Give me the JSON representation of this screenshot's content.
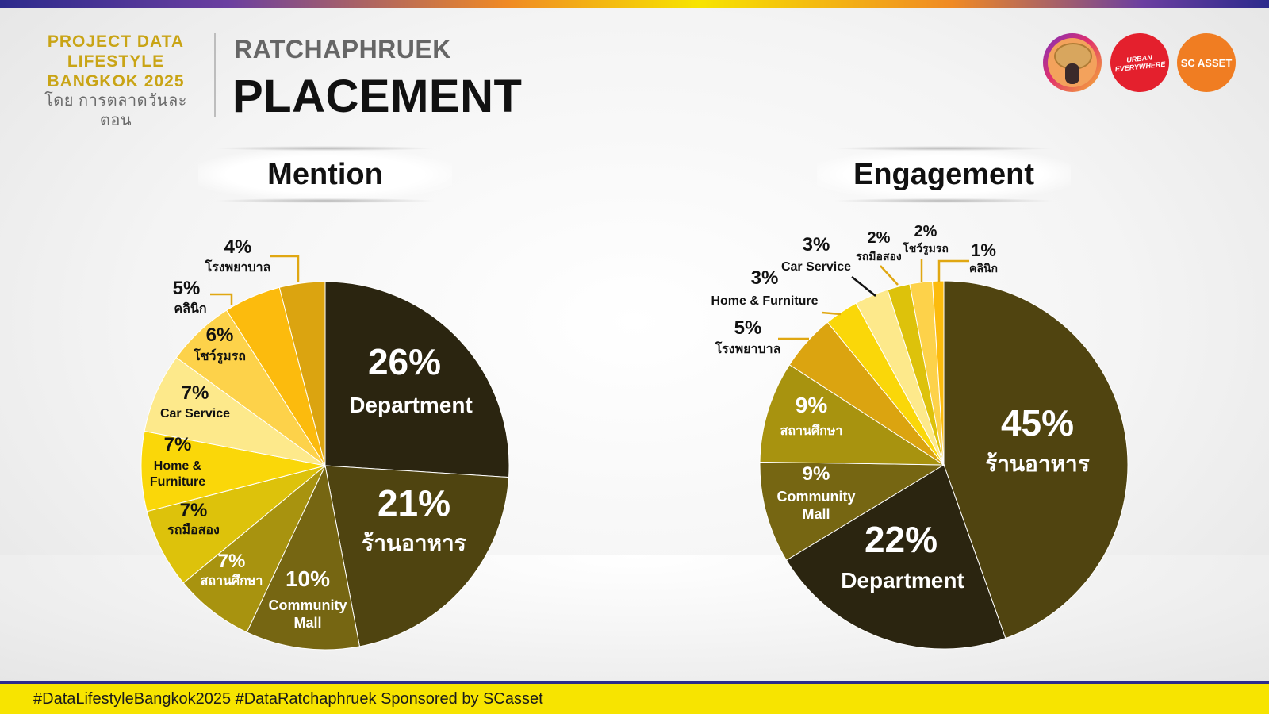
{
  "header": {
    "brand_line1": "PROJECT DATA",
    "brand_line2": "LIFESTYLE",
    "brand_line3": "BANGKOK 2025",
    "brand_by": "โดย การตลาดวันละตอน",
    "place": "RATCHAPHRUEK",
    "title": "PLACEMENT"
  },
  "logos": {
    "urban_line1": "URBAN",
    "urban_line2": "EVERYWHERE",
    "sc_asset": "SC ASSET"
  },
  "footer": {
    "text": "#DataLifestyleBangkok2025 #DataRatchaphruek Sponsored by SCasset"
  },
  "colors": {
    "brand_gold": "#c9a415",
    "footer_yellow": "#f7e400",
    "stripe_navy": "#2c2a8c"
  },
  "chart_data": [
    {
      "type": "pie",
      "title": "Mention",
      "slices": [
        {
          "label": "Department",
          "value": 26,
          "pct": "26%",
          "color": "#2b2510"
        },
        {
          "label": "ร้านอาหาร",
          "value": 21,
          "pct": "21%",
          "color": "#4f4410"
        },
        {
          "label": "Community Mall",
          "value": 10,
          "pct": "10%",
          "color": "#766612"
        },
        {
          "label": "สถานศึกษา",
          "value": 7,
          "pct": "7%",
          "color": "#a8930f"
        },
        {
          "label": "รถมือสอง",
          "value": 7,
          "pct": "7%",
          "color": "#ddc20b"
        },
        {
          "label": "Home & Furniture",
          "value": 7,
          "pct": "7%",
          "color": "#fad709"
        },
        {
          "label": "Car Service",
          "value": 7,
          "pct": "7%",
          "color": "#fde98b"
        },
        {
          "label": "โชว์รูมรถ",
          "value": 6,
          "pct": "6%",
          "color": "#fdd24a"
        },
        {
          "label": "คลินิก",
          "value": 5,
          "pct": "5%",
          "color": "#fcbb0d"
        },
        {
          "label": "โรงพยาบาล",
          "value": 4,
          "pct": "4%",
          "color": "#dba410"
        }
      ]
    },
    {
      "type": "pie",
      "title": "Engagement",
      "slices": [
        {
          "label": "ร้านอาหาร",
          "value": 45,
          "pct": "45%",
          "color": "#504410"
        },
        {
          "label": "Department",
          "value": 22,
          "pct": "22%",
          "color": "#2b2510"
        },
        {
          "label": "Community Mall",
          "value": 9,
          "pct": "9%",
          "color": "#766612"
        },
        {
          "label": "สถานศึกษา",
          "value": 9,
          "pct": "9%",
          "color": "#a8930f"
        },
        {
          "label": "โรงพยาบาล",
          "value": 5,
          "pct": "5%",
          "color": "#dba410"
        },
        {
          "label": "Home & Furniture",
          "value": 3,
          "pct": "3%",
          "color": "#fad709"
        },
        {
          "label": "Car Service",
          "value": 3,
          "pct": "3%",
          "color": "#fde98b"
        },
        {
          "label": "รถมือสอง",
          "value": 2,
          "pct": "2%",
          "color": "#ddc20b"
        },
        {
          "label": "โชว์รูมรถ",
          "value": 2,
          "pct": "2%",
          "color": "#fdd24a"
        },
        {
          "label": "คลินิก",
          "value": 1,
          "pct": "1%",
          "color": "#fcbb0d"
        }
      ]
    }
  ]
}
